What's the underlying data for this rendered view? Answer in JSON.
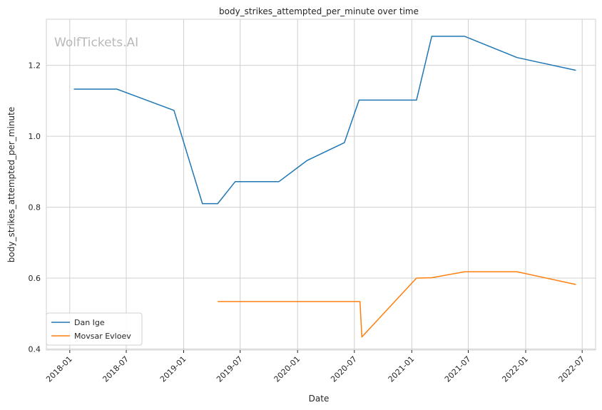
{
  "chart_data": {
    "type": "line",
    "title": "body_strikes_attempted_per_minute over time",
    "xlabel": "Date",
    "ylabel": "body_strikes_attempted_per_minute",
    "watermark": "WolfTickets.AI",
    "x_ticks": [
      "2018-01",
      "2018-07",
      "2019-01",
      "2019-07",
      "2020-01",
      "2020-07",
      "2021-01",
      "2021-07",
      "2022-01",
      "2022-07"
    ],
    "y_ticks": [
      0.4,
      0.6,
      0.8,
      1.0,
      1.2
    ],
    "y_tick_labels": [
      "0.4",
      "0.6",
      "0.8",
      "1.0",
      "1.2"
    ],
    "xlim": [
      "2017-10-18",
      "2022-08-13"
    ],
    "ylim": [
      0.397,
      1.33
    ],
    "grid": true,
    "legend_position": "lower-left",
    "series": [
      {
        "name": "Dan Ige",
        "color": "#1f77b4",
        "points": [
          [
            "2018-01-14",
            1.133
          ],
          [
            "2018-06-01",
            1.133
          ],
          [
            "2018-12-01",
            1.073
          ],
          [
            "2019-03-02",
            0.81
          ],
          [
            "2019-04-20",
            0.81
          ],
          [
            "2019-06-15",
            0.872
          ],
          [
            "2019-11-02",
            0.872
          ],
          [
            "2020-02-01",
            0.932
          ],
          [
            "2020-05-30",
            0.982
          ],
          [
            "2020-07-16",
            1.102
          ],
          [
            "2021-01-16",
            1.102
          ],
          [
            "2021-03-06",
            1.282
          ],
          [
            "2021-06-19",
            1.282
          ],
          [
            "2021-12-04",
            1.222
          ],
          [
            "2022-06-11",
            1.186
          ]
        ]
      },
      {
        "name": "Movsar Evloev",
        "color": "#ff7f0e",
        "points": [
          [
            "2019-04-20",
            0.534
          ],
          [
            "2020-07-19",
            0.534
          ],
          [
            "2020-07-25",
            0.434
          ],
          [
            "2021-01-16",
            0.6
          ],
          [
            "2021-03-06",
            0.601
          ],
          [
            "2021-06-19",
            0.618
          ],
          [
            "2021-12-04",
            0.618
          ],
          [
            "2022-06-11",
            0.582
          ]
        ]
      }
    ]
  }
}
